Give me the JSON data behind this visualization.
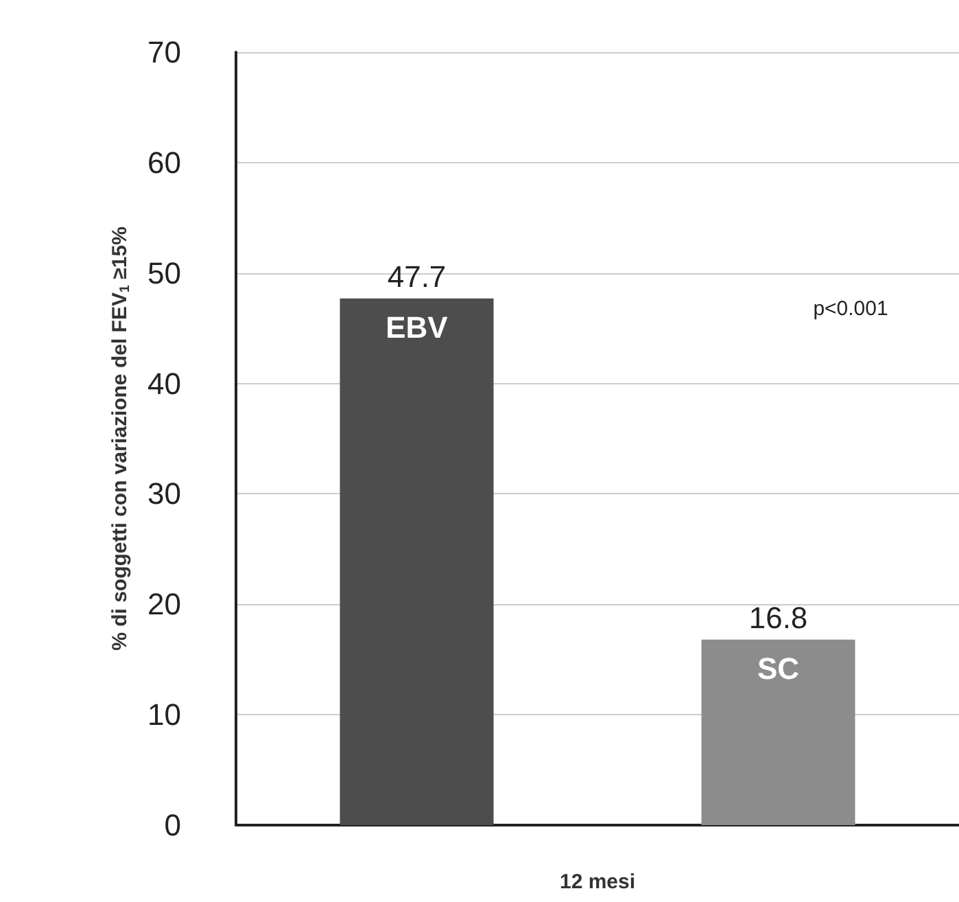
{
  "chart_data": {
    "type": "bar",
    "categories": [
      "EBV",
      "SC"
    ],
    "values": [
      47.7,
      16.8
    ],
    "colors": [
      "#4d4d4d",
      "#8c8c8c"
    ],
    "ylabel": "% di soggetti con variazione del FEV$_{1}$ ≥15%",
    "xlabel": "12 mesi",
    "ylim": [
      0,
      70
    ],
    "yticks": [
      0,
      10,
      20,
      30,
      40,
      50,
      60,
      70
    ],
    "grid": "y",
    "data_labels": true,
    "annotations": [
      "p<0.001"
    ]
  }
}
